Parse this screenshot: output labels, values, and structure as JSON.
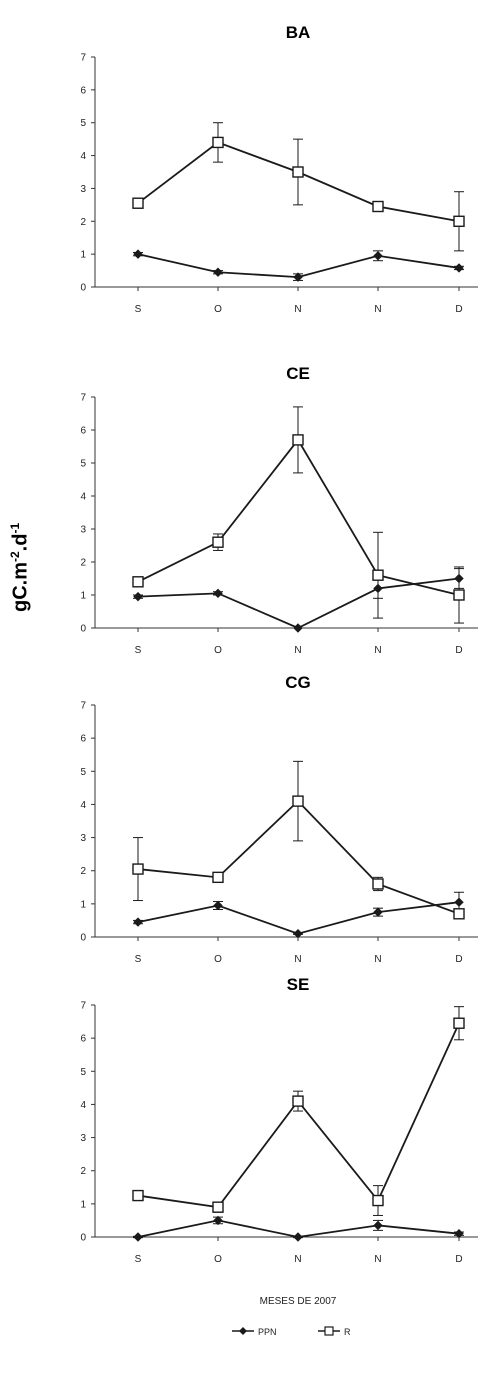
{
  "y_axis_label": {
    "base": "gC.m",
    "sup1": "-2",
    "mid": ".d",
    "sup2": "-1"
  },
  "x_axis_label": "MESES DE 2007",
  "legend": {
    "ppn": "PPN",
    "r": "R"
  },
  "colors": {
    "line": "#1a1a1a",
    "axis": "#333333",
    "marker_fill": "#ffffff"
  },
  "chart_data": [
    {
      "type": "line",
      "title": "BA",
      "categories": [
        "S",
        "O",
        "N",
        "N",
        "D"
      ],
      "ylim": [
        0,
        7
      ],
      "yticks": [
        0,
        1,
        2,
        3,
        4,
        5,
        6,
        7
      ],
      "grid": false,
      "series": [
        {
          "name": "PPN",
          "marker": "filled-diamond",
          "values": [
            1.0,
            0.45,
            0.3,
            0.95,
            0.58
          ],
          "error": [
            0.05,
            0.05,
            0.1,
            0.15,
            0.05
          ]
        },
        {
          "name": "R",
          "marker": "open-square",
          "values": [
            2.55,
            4.4,
            3.5,
            2.45,
            2.0
          ],
          "error": [
            0.15,
            0.6,
            1.0,
            0.15,
            0.9
          ]
        }
      ]
    },
    {
      "type": "line",
      "title": "CE",
      "categories": [
        "S",
        "O",
        "N",
        "N",
        "D"
      ],
      "ylim": [
        0,
        7
      ],
      "yticks": [
        0,
        1,
        2,
        3,
        4,
        5,
        6,
        7
      ],
      "grid": false,
      "series": [
        {
          "name": "PPN",
          "marker": "filled-diamond",
          "values": [
            0.95,
            1.05,
            0.0,
            1.2,
            1.5
          ],
          "error": [
            0.05,
            0.05,
            0.0,
            0.3,
            0.3
          ]
        },
        {
          "name": "R",
          "marker": "open-square",
          "values": [
            1.4,
            2.6,
            5.7,
            1.6,
            1.0
          ],
          "error": [
            0.1,
            0.25,
            1.0,
            1.3,
            0.85
          ]
        }
      ]
    },
    {
      "type": "line",
      "title": "CG",
      "categories": [
        "S",
        "O",
        "N",
        "N",
        "D"
      ],
      "ylim": [
        0,
        7
      ],
      "yticks": [
        0,
        1,
        2,
        3,
        4,
        5,
        6,
        7
      ],
      "grid": false,
      "series": [
        {
          "name": "PPN",
          "marker": "filled-diamond",
          "values": [
            0.45,
            0.95,
            0.1,
            0.75,
            1.05
          ],
          "error": [
            0.05,
            0.12,
            0.02,
            0.12,
            0.3
          ]
        },
        {
          "name": "R",
          "marker": "open-square",
          "values": [
            2.05,
            1.8,
            4.1,
            1.6,
            0.7
          ],
          "error": [
            0.95,
            0.1,
            1.2,
            0.2,
            0.1
          ]
        }
      ]
    },
    {
      "type": "line",
      "title": "SE",
      "categories": [
        "S",
        "O",
        "N",
        "N",
        "D"
      ],
      "ylim": [
        0,
        7
      ],
      "yticks": [
        0,
        1,
        2,
        3,
        4,
        5,
        6,
        7
      ],
      "grid": false,
      "series": [
        {
          "name": "PPN",
          "marker": "filled-diamond",
          "values": [
            0.0,
            0.5,
            0.0,
            0.35,
            0.1
          ],
          "error": [
            0.02,
            0.1,
            0.02,
            0.15,
            0.05
          ]
        },
        {
          "name": "R",
          "marker": "open-square",
          "values": [
            1.25,
            0.9,
            4.1,
            1.1,
            6.45
          ],
          "error": [
            0.05,
            0.15,
            0.3,
            0.45,
            0.5
          ]
        }
      ]
    }
  ]
}
